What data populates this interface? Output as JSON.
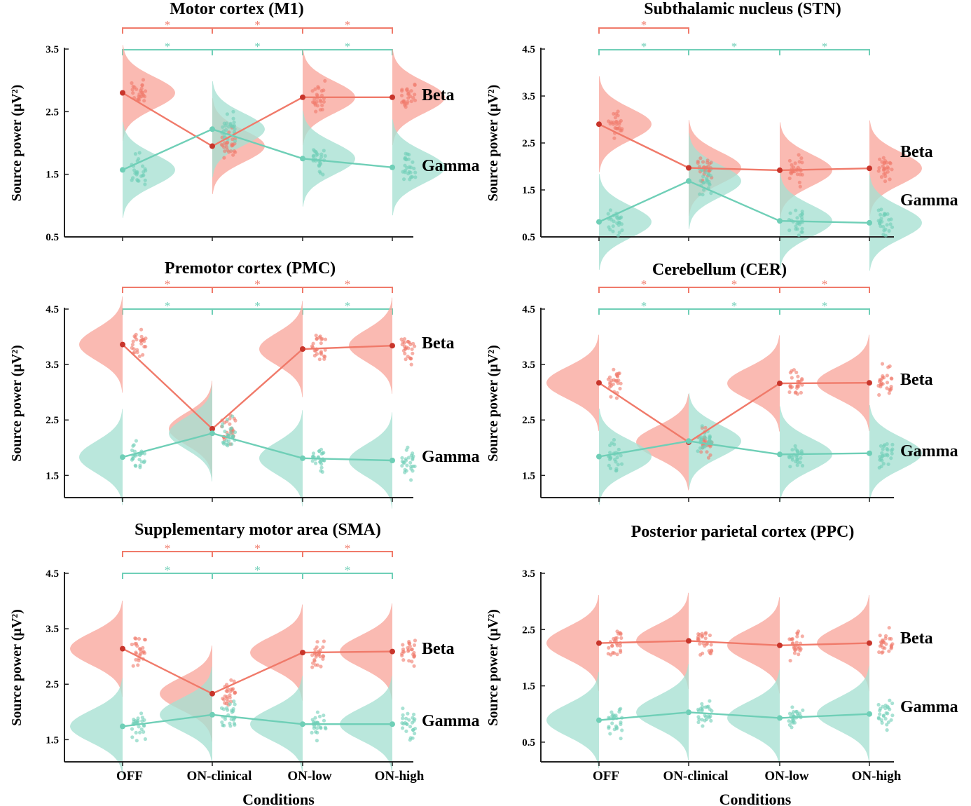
{
  "colors": {
    "beta": "#f07a6a",
    "beta_dark": "#c8352b",
    "beta_fill": "#f9a79c",
    "gamma": "#6fcfb7",
    "gamma_fill": "#a6e0d2",
    "axis": "#222222"
  },
  "chart_data": [
    {
      "type": "raincloud",
      "title": "Motor cortex (M1)",
      "ylabel": "Source power (μV²)",
      "ylim": [
        0.5,
        3.5
      ],
      "yticks": [
        "0.5",
        "1.5",
        "2.5",
        "3.5"
      ],
      "categories": [
        "OFF",
        "ON-clinical",
        "ON-low",
        "ON-high"
      ],
      "series": [
        {
          "name": "Beta",
          "means": [
            2.8,
            1.95,
            2.73,
            2.73
          ]
        },
        {
          "name": "Gamma",
          "means": [
            1.57,
            2.22,
            1.75,
            1.61
          ]
        }
      ],
      "significance": {
        "beta": [
          {
            "from": "OFF",
            "to": "ON-clinical",
            "label": "*"
          },
          {
            "from": "ON-clinical",
            "to": "ON-low",
            "label": "*"
          },
          {
            "from": "ON-low",
            "to": "ON-high",
            "label": "*"
          }
        ],
        "gamma": [
          {
            "from": "OFF",
            "to": "ON-clinical",
            "label": "*"
          },
          {
            "from": "ON-clinical",
            "to": "ON-low",
            "label": "*"
          },
          {
            "from": "ON-low",
            "to": "ON-high",
            "label": "*"
          }
        ]
      }
    },
    {
      "type": "raincloud",
      "title": "Subthalamic nucleus (STN)",
      "ylabel": "Source power (μV²)",
      "ylim": [
        0.5,
        4.5
      ],
      "yticks": [
        "0.5",
        "1.5",
        "2.5",
        "3.5",
        "4.5"
      ],
      "categories": [
        "OFF",
        "ON-clinical",
        "ON-low",
        "ON-high"
      ],
      "series": [
        {
          "name": "Beta",
          "means": [
            2.9,
            1.97,
            1.92,
            1.96
          ]
        },
        {
          "name": "Gamma",
          "means": [
            0.82,
            1.69,
            0.84,
            0.8
          ]
        }
      ],
      "significance": {
        "beta": [
          {
            "from": "OFF",
            "to": "ON-clinical",
            "label": "*"
          }
        ],
        "gamma": [
          {
            "from": "OFF",
            "to": "ON-clinical",
            "label": "*"
          },
          {
            "from": "ON-clinical",
            "to": "ON-low",
            "label": "*"
          },
          {
            "from": "ON-low",
            "to": "ON-high",
            "label": "*"
          }
        ]
      }
    },
    {
      "type": "raincloud",
      "title": "Premotor cortex (PMC)",
      "ylabel": "Source power (μV²)",
      "ylim": [
        1.1,
        4.5
      ],
      "yticks": [
        "1.5",
        "2.5",
        "3.5",
        "4.5"
      ],
      "categories": [
        "OFF",
        "ON-clinical",
        "ON-low",
        "ON-high"
      ],
      "series": [
        {
          "name": "Beta",
          "means": [
            3.86,
            2.34,
            3.78,
            3.84
          ]
        },
        {
          "name": "Gamma",
          "means": [
            1.83,
            2.26,
            1.81,
            1.77
          ]
        }
      ],
      "significance": {
        "beta": [
          {
            "from": "OFF",
            "to": "ON-clinical",
            "label": "*"
          },
          {
            "from": "ON-clinical",
            "to": "ON-low",
            "label": "*"
          },
          {
            "from": "ON-low",
            "to": "ON-high",
            "label": "*"
          }
        ],
        "gamma": [
          {
            "from": "OFF",
            "to": "ON-clinical",
            "label": "*"
          },
          {
            "from": "ON-clinical",
            "to": "ON-low",
            "label": "*"
          },
          {
            "from": "ON-low",
            "to": "ON-high",
            "label": "*"
          }
        ]
      }
    },
    {
      "type": "raincloud",
      "title": "Cerebellum (CER)",
      "ylabel": "Source power (μV²)",
      "ylim": [
        1.1,
        4.5
      ],
      "yticks": [
        "1.5",
        "2.5",
        "3.5",
        "4.5"
      ],
      "categories": [
        "OFF",
        "ON-clinical",
        "ON-low",
        "ON-high"
      ],
      "series": [
        {
          "name": "Beta",
          "means": [
            3.17,
            2.1,
            3.16,
            3.17
          ]
        },
        {
          "name": "Gamma",
          "means": [
            1.84,
            2.12,
            1.88,
            1.9
          ]
        }
      ],
      "significance": {
        "beta": [
          {
            "from": "OFF",
            "to": "ON-clinical",
            "label": "*"
          },
          {
            "from": "ON-clinical",
            "to": "ON-low",
            "label": "*"
          },
          {
            "from": "ON-low",
            "to": "ON-high",
            "label": "*"
          }
        ],
        "gamma": [
          {
            "from": "OFF",
            "to": "ON-clinical",
            "label": "*"
          },
          {
            "from": "ON-clinical",
            "to": "ON-low",
            "label": "*"
          },
          {
            "from": "ON-low",
            "to": "ON-high",
            "label": "*"
          }
        ]
      }
    },
    {
      "type": "raincloud",
      "title": "Supplementary motor area (SMA)",
      "ylabel": "Source power (μV²)",
      "ylim": [
        1.1,
        4.5
      ],
      "yticks": [
        "1.5",
        "2.5",
        "3.5",
        "4.5"
      ],
      "categories": [
        "OFF",
        "ON-clinical",
        "ON-low",
        "ON-high"
      ],
      "xlabel": "Conditions",
      "series": [
        {
          "name": "Beta",
          "means": [
            3.14,
            2.33,
            3.07,
            3.09
          ]
        },
        {
          "name": "Gamma",
          "means": [
            1.74,
            1.95,
            1.78,
            1.78
          ]
        }
      ],
      "significance": {
        "beta": [
          {
            "from": "OFF",
            "to": "ON-clinical",
            "label": "*"
          },
          {
            "from": "ON-clinical",
            "to": "ON-low",
            "label": "*"
          },
          {
            "from": "ON-low",
            "to": "ON-high",
            "label": "*"
          }
        ],
        "gamma": [
          {
            "from": "OFF",
            "to": "ON-clinical",
            "label": "*"
          },
          {
            "from": "ON-clinical",
            "to": "ON-low",
            "label": "*"
          },
          {
            "from": "ON-low",
            "to": "ON-high",
            "label": "*"
          }
        ]
      }
    },
    {
      "type": "raincloud",
      "title": "Posterior parietal cortex (PPC)",
      "ylabel": "Source power (μV²)",
      "ylim": [
        0.15,
        3.5
      ],
      "yticks": [
        "0.5",
        "1.5",
        "2.5",
        "3.5"
      ],
      "categories": [
        "OFF",
        "ON-clinical",
        "ON-low",
        "ON-high"
      ],
      "xlabel": "Conditions",
      "series": [
        {
          "name": "Beta",
          "means": [
            2.26,
            2.3,
            2.22,
            2.26
          ]
        },
        {
          "name": "Gamma",
          "means": [
            0.89,
            1.03,
            0.93,
            1.0
          ]
        }
      ],
      "significance": {
        "beta": [],
        "gamma": []
      }
    }
  ]
}
